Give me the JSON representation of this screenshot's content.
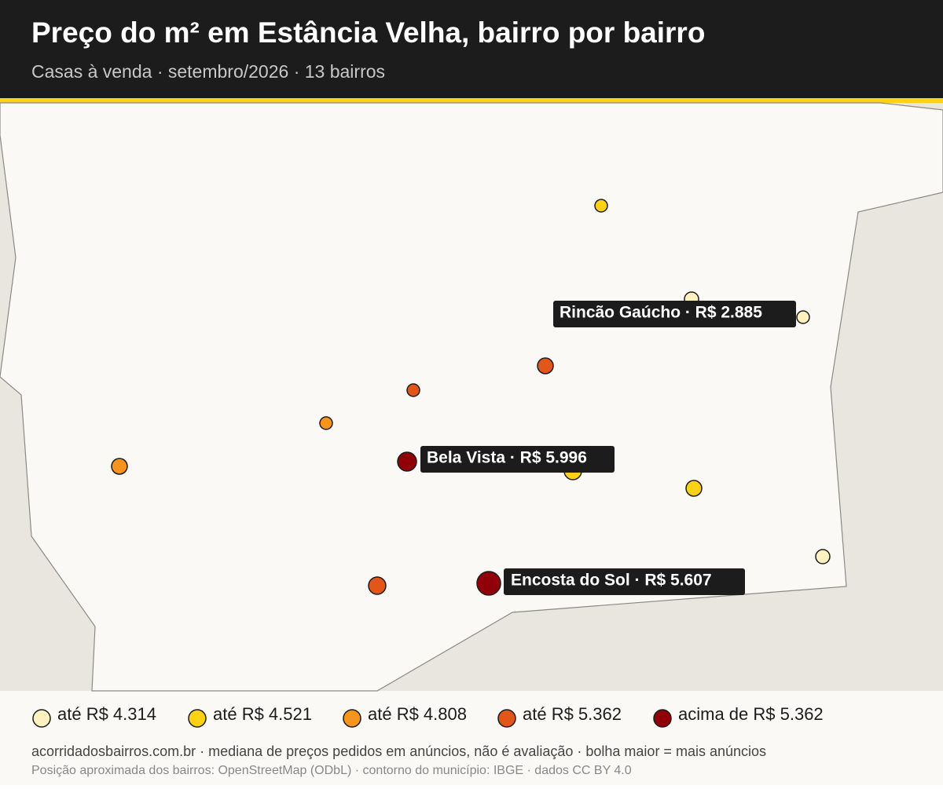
{
  "header": {
    "title": "Preço do m² em Estância Velha, bairro por bairro",
    "subtitle": "Casas à venda · setembro/2026 · 13 bairros"
  },
  "map": {
    "labels": [
      "Rincão Gaúcho · R$ 2.885",
      "Bela Vista · R$ 5.996",
      "Encosta do Sol · R$ 5.607"
    ]
  },
  "legend": {
    "items": [
      {
        "label": "até R$ 4.314",
        "color": "#fdf1bf"
      },
      {
        "label": "até R$ 4.521",
        "color": "#fcd116"
      },
      {
        "label": "até R$ 4.808",
        "color": "#f7941d"
      },
      {
        "label": "até R$ 5.362",
        "color": "#e2561a"
      },
      {
        "label": "acima de R$ 5.362",
        "color": "#900008"
      }
    ]
  },
  "footer": {
    "line1": "acorridadosbairros.com.br · mediana de preços pedidos em anúncios, não é avaliação · bolha maior = mais anúncios",
    "line2": "Posição aproximada dos bairros: OpenStreetMap (ODbL) · contorno do município: IBGE · dados CC BY 4.0"
  }
}
